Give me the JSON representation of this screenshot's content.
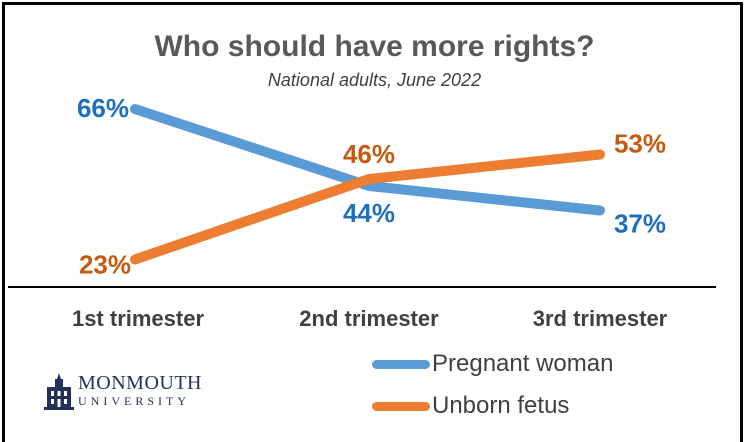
{
  "chart_data": {
    "type": "line",
    "title": "Who should have more rights?",
    "subtitle": "National adults, June 2022",
    "categories": [
      "1st trimester",
      "2nd trimester",
      "3rd trimester"
    ],
    "ylim": [
      0,
      80
    ],
    "series": [
      {
        "name": "Pregnant woman",
        "values": [
          66,
          44,
          37
        ],
        "labels": [
          "66%",
          "44%",
          "37%"
        ],
        "color": "#5b9bd5",
        "label_color": "#1f6fbf"
      },
      {
        "name": "Unborn fetus",
        "values": [
          23,
          46,
          53
        ],
        "labels": [
          "23%",
          "46%",
          "53%"
        ],
        "color": "#ed7d31",
        "label_color": "#c55a11"
      }
    ],
    "legend_position": "bottom-right",
    "grid": false
  },
  "logo": {
    "line1": "MONMOUTH",
    "line2": "UNIVERSITY"
  }
}
